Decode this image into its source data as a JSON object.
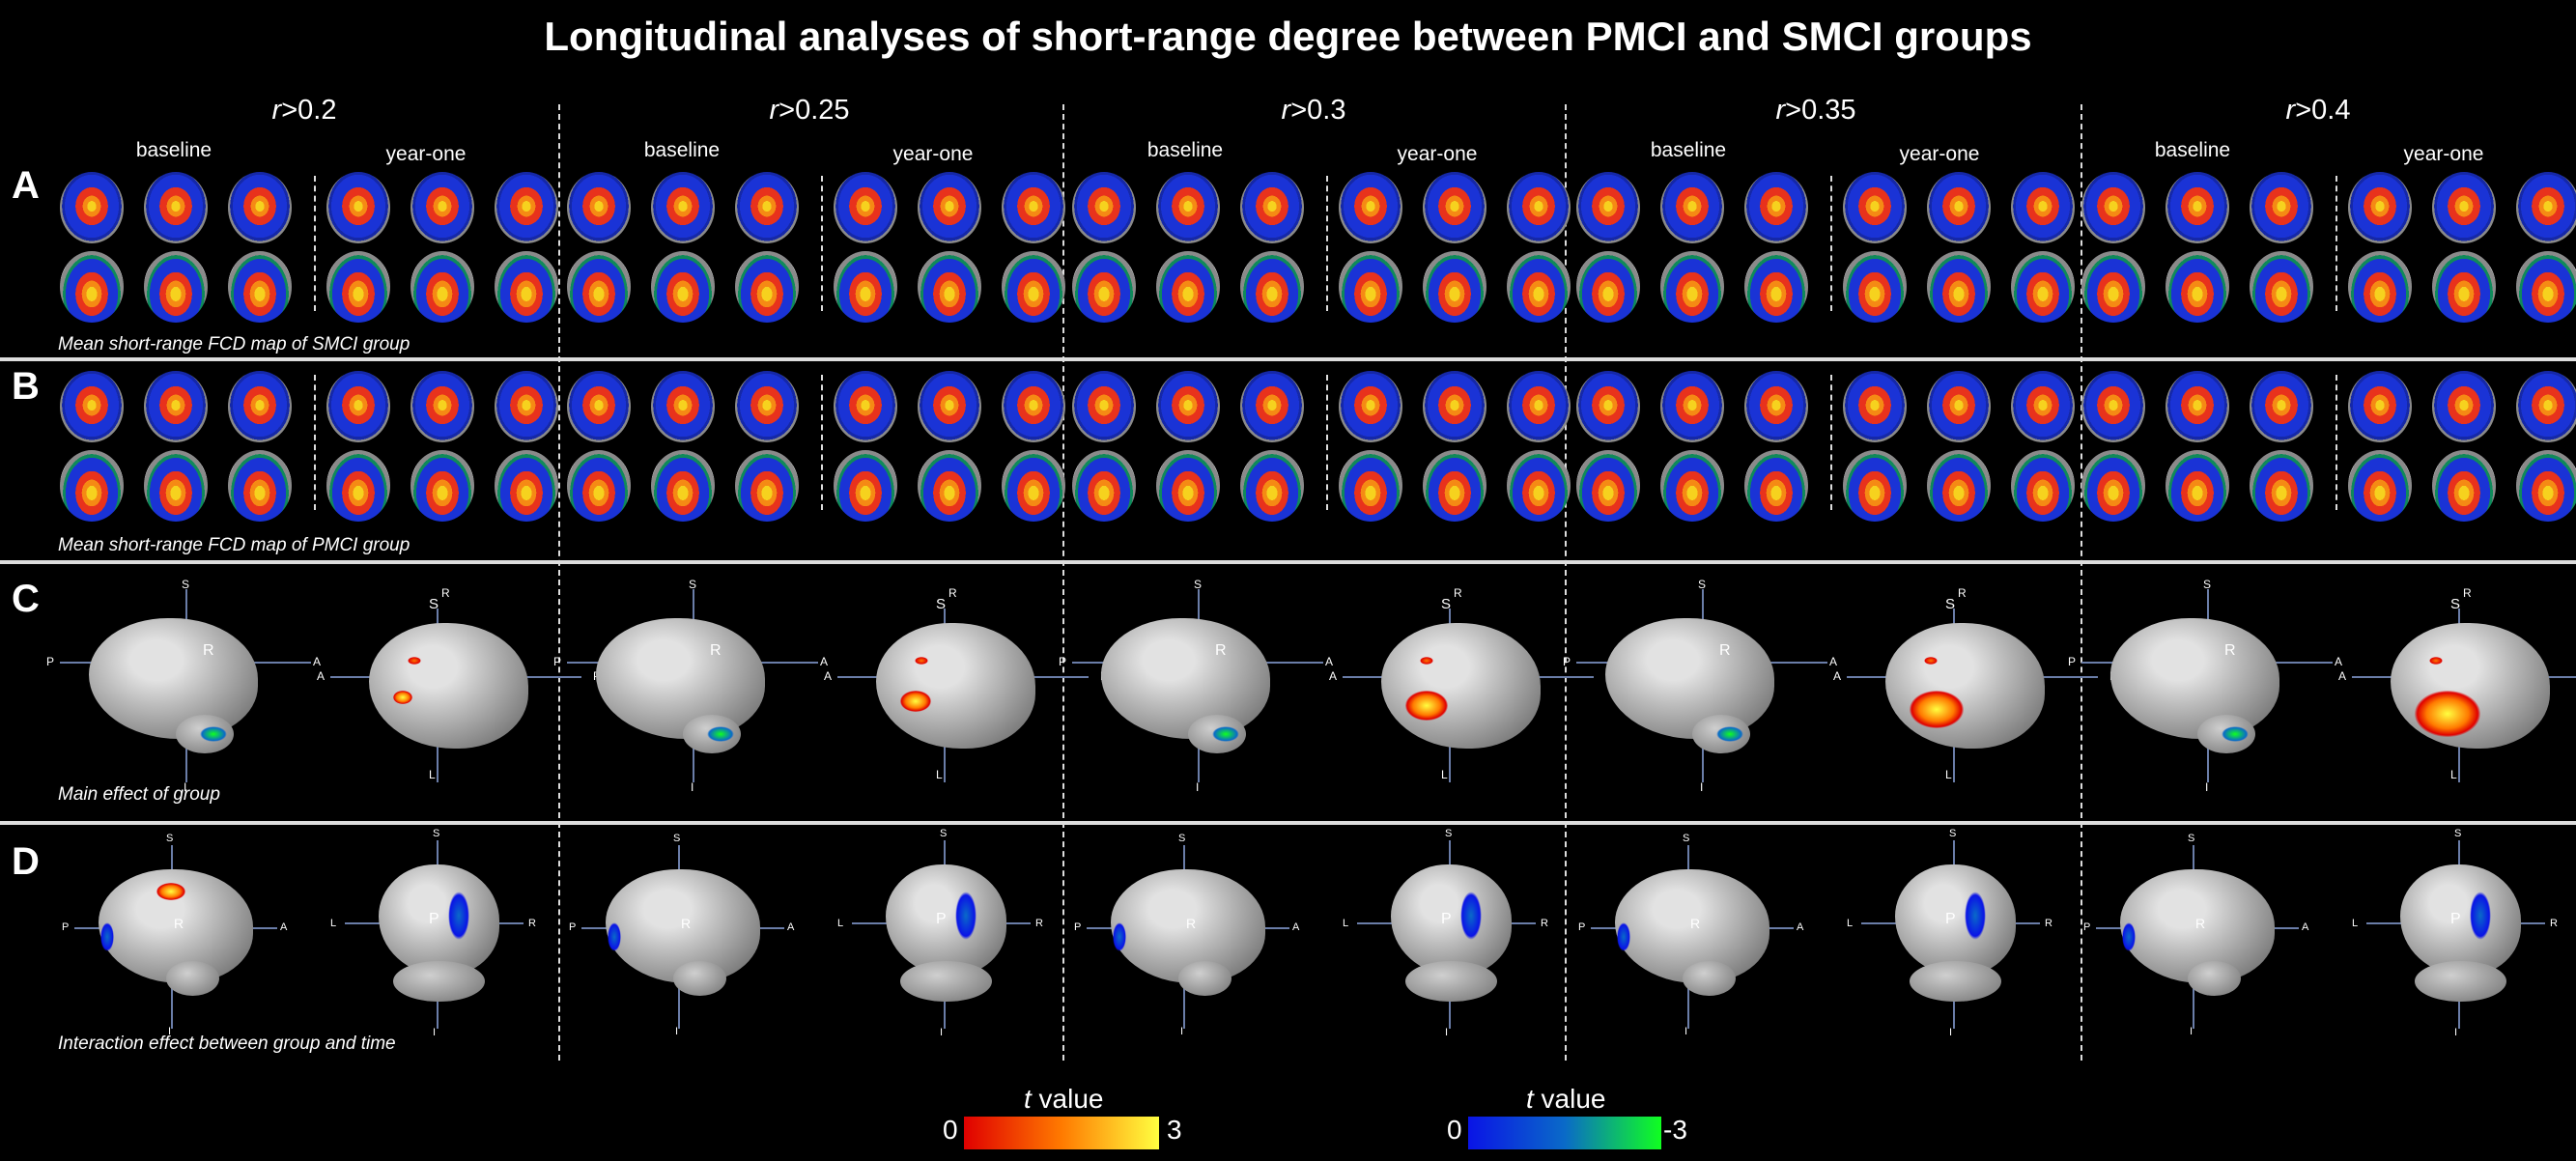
{
  "title": "Longitudinal analyses of short-range degree between PMCI and SMCI groups",
  "thresholds": [
    {
      "prefix": "r",
      "suffix": ">0.2"
    },
    {
      "prefix": "r",
      "suffix": ">0.25"
    },
    {
      "prefix": "r",
      "suffix": ">0.3"
    },
    {
      "prefix": "r",
      "suffix": ">0.35"
    },
    {
      "prefix": "r",
      "suffix": ">0.4"
    }
  ],
  "timepoints": {
    "baseline": "baseline",
    "year_one": "year-one"
  },
  "rows": {
    "A": {
      "letter": "A",
      "caption": "Mean short-range FCD map of SMCI group"
    },
    "B": {
      "letter": "B",
      "caption": "Mean short-range FCD map of PMCI group"
    },
    "C": {
      "letter": "C",
      "caption": "Main effect of group"
    },
    "D": {
      "letter": "D",
      "caption": "Interaction effect between group and time"
    }
  },
  "orientation_labels": {
    "S": "S",
    "I": "I",
    "A": "A",
    "P": "P",
    "R": "R",
    "L": "L"
  },
  "colorbars": {
    "positive": {
      "label_italic": "t",
      "label": " value",
      "min": "0",
      "max": "3",
      "colors": [
        "#e00000",
        "#ff7a00",
        "#ffff40"
      ]
    },
    "negative": {
      "label_italic": "t",
      "label": " value",
      "min": "0",
      "max": "-3",
      "colors": [
        "#0a14e6",
        "#0a6ac8",
        "#10ff20"
      ]
    }
  }
}
